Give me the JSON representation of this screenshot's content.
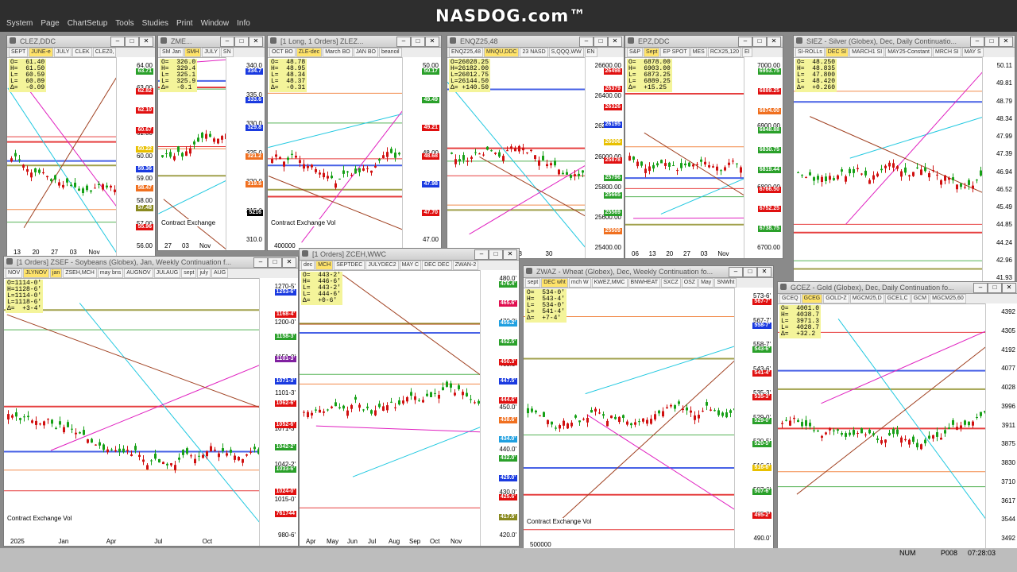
{
  "brand": "NASDOG.com™",
  "menu": [
    "System",
    "Page",
    "ChartSetup",
    "Tools",
    "Studies",
    "Print",
    "Window",
    "Info"
  ],
  "windows": [
    {
      "id": "w1",
      "title": "CLEZ,DDC",
      "tabs": [
        "SEPT",
        "JUNE-e",
        "JULY",
        "CLEK",
        "CLEZ0,"
      ],
      "ohlc": "O=  61.40\nH=  61.50\nL=  60.59\nL=  60.89\nΔ=  -0.09",
      "ticks": [
        "64.00",
        "63.00",
        "62.00",
        "61.00",
        "60.00",
        "59.00",
        "58.00",
        "57.00",
        "56.00"
      ],
      "tags": [
        {
          "t": "63.71",
          "c": "#2aa02a"
        },
        {
          "t": "62.82",
          "c": "#e01010"
        },
        {
          "t": "62.10",
          "c": "#e01010"
        },
        {
          "t": "60.67",
          "c": "#e01010"
        },
        {
          "t": "60.22",
          "c": "#e8c000"
        },
        {
          "t": "59.36",
          "c": "#1a3ae0"
        },
        {
          "t": "58.47",
          "c": "#f07020"
        },
        {
          "t": "57.48",
          "c": "#8a8a20"
        },
        {
          "t": "55.96",
          "c": "#e01010"
        }
      ],
      "xl": [
        "13",
        "20",
        "27",
        "03",
        "Nov"
      ]
    },
    {
      "id": "w2",
      "title": "ZME...",
      "tabs": [
        "SM Jan",
        "SMH",
        "JULY",
        "SN"
      ],
      "ohlc": "O=  326.0\nH=  329.4\nL=  325.1\nL=  325.9\nΔ=  -0.1",
      "ticks": [
        "340.0",
        "335.0",
        "330.0",
        "325.0",
        "320.0",
        "315.0",
        "310.0"
      ],
      "tags": [
        {
          "t": "334.7",
          "c": "#1a3ae0"
        },
        {
          "t": "333.6",
          "c": "#1a3ae0"
        },
        {
          "t": "329.8",
          "c": "#1a3ae0"
        },
        {
          "t": "321.2",
          "c": "#f07020"
        },
        {
          "t": "319.5",
          "c": "#f07020"
        },
        {
          "t": "5216",
          "c": "#000"
        }
      ],
      "ce": "Contract Exchange",
      "xl": [
        "27",
        "03",
        "Nov"
      ]
    },
    {
      "id": "w3",
      "title": "[1 Long, 1 Orders] ZLEZ...",
      "tabs": [
        "OCT BO",
        "ZLE-dec",
        "March BO",
        "JAN BO",
        "beanoil"
      ],
      "ohlc": "O=  48.78\nH=  48.95\nL=  48.34\nL=  48.37\nΔ=  -0.31",
      "ticks": [
        "50.00",
        "48.00",
        "47.00"
      ],
      "tags": [
        {
          "t": "50.17",
          "c": "#2aa02a"
        },
        {
          "t": "49.49",
          "c": "#2aa02a"
        },
        {
          "t": "49.21",
          "c": "#e01010"
        },
        {
          "t": "48.68",
          "c": "#e01010"
        },
        {
          "t": "47.98",
          "c": "#1a3ae0"
        },
        {
          "t": "47.70",
          "c": "#e01010"
        }
      ],
      "ce": "Contract Exchange Vol",
      "xl": [
        "400000"
      ]
    },
    {
      "id": "w4",
      "title": "ENQZ25,48",
      "tabs": [
        "ENQZ25,48",
        "MNQU,DDC",
        "23 NASD",
        "S,QQQ,WW",
        "EN"
      ],
      "ohlc": "O=26028.25\nH=26182.00\nL=26012.75\nL=26144.50\nΔ= +140.50",
      "ticks": [
        "26600.00",
        "26400.00",
        "26200.00",
        "26000.00",
        "25800.00",
        "25600.00",
        "25400.00"
      ],
      "tags": [
        {
          "t": "26498",
          "c": "#e01010"
        },
        {
          "t": "26379",
          "c": "#e01010"
        },
        {
          "t": "26326",
          "c": "#e01010"
        },
        {
          "t": "26195",
          "c": "#1a3ae0"
        },
        {
          "t": "26006",
          "c": "#e8c000"
        },
        {
          "t": "25878",
          "c": "#e01010"
        },
        {
          "t": "25796",
          "c": "#2aa02a"
        },
        {
          "t": "25665",
          "c": "#2aa02a"
        },
        {
          "t": "25569",
          "c": "#2aa02a"
        },
        {
          "t": "25509",
          "c": "#f07020"
        }
      ],
      "xl": [
        "30",
        "31",
        "08",
        "30"
      ]
    },
    {
      "id": "w5",
      "title": "EPZ,DDC",
      "tabs": [
        "S&P",
        "Sept",
        "EP SPOT",
        "MES",
        "RCX25,120",
        "EI"
      ],
      "ohlc": "O=  6878.00\nH=  6903.00\nL=  6873.25\nL=  6889.25\nΔ=  +15.25",
      "ticks": [
        "7000.00",
        "6900.00",
        "6800.00",
        "6700.00"
      ],
      "tags": [
        {
          "t": "6953.75",
          "c": "#2aa02a"
        },
        {
          "t": "6889.25",
          "c": "#e01010"
        },
        {
          "t": "6874.00",
          "c": "#f07020"
        },
        {
          "t": "6848.88",
          "c": "#2aa02a"
        },
        {
          "t": "6830.75",
          "c": "#2aa02a"
        },
        {
          "t": "6819.44",
          "c": "#2aa02a"
        },
        {
          "t": "6766.50",
          "c": "#e01010"
        },
        {
          "t": "6752.25",
          "c": "#e01010"
        },
        {
          "t": "6738.75",
          "c": "#2aa02a"
        }
      ],
      "xl": [
        "06",
        "13",
        "20",
        "27",
        "03",
        "Nov"
      ]
    },
    {
      "id": "w6",
      "title": "SIEZ - Silver (Globex), Dec, Daily Continuatio...",
      "tabs": [
        "SI-ROLLs",
        "DEC SI",
        "MARCH1 SI",
        "MAY25-Constant",
        "MRCH SI",
        "MAY S"
      ],
      "ohlc": "O=  48.250\nH=  48.835\nL=  47.800\nL=  48.420\nΔ=  +0.260",
      "ticks": [
        "50.11",
        "49.81",
        "48.79",
        "48.34",
        "47.99",
        "47.39",
        "46.94",
        "46.52",
        "45.49",
        "44.85",
        "44.24",
        "42.96",
        "41.93"
      ],
      "xl": [
        "Oct",
        "Nov"
      ]
    },
    {
      "id": "w7",
      "title": "[1 Orders] ZSEF - Soybeans (Globex), Jan, Weekly Continuation f...",
      "tabs": [
        "NOV",
        "JLYNOV",
        "jan",
        "ZSEH,MCH",
        "may bns",
        "AUGNOV",
        "JULAUG",
        "sept",
        "july",
        "AUG"
      ],
      "ohlc": "O=1114-0'\nH=1128-6'\nL=1114-0'\nL=1118-6'\nΔ=  +3-4'",
      "ticks": [
        "1270-5'",
        "1200-0'",
        "1151-0'",
        "1101-3'",
        "1071-3'",
        "1042-2'",
        "1015-0'",
        "980-6'"
      ],
      "tags": [
        {
          "t": "1253-6'",
          "c": "#1a3ae0"
        },
        {
          "t": "1168-4'",
          "c": "#e01010"
        },
        {
          "t": "1158-3'",
          "c": "#2aa02a"
        },
        {
          "t": "1101-3'",
          "c": "#8020a0"
        },
        {
          "t": "1071-3'",
          "c": "#1a3ae0"
        },
        {
          "t": "1062-6'",
          "c": "#e01010"
        },
        {
          "t": "1052-6'",
          "c": "#e01010"
        },
        {
          "t": "1042-2'",
          "c": "#2aa02a"
        },
        {
          "t": "1033-6'",
          "c": "#2aa02a"
        },
        {
          "t": "1024-0'",
          "c": "#e01010"
        },
        {
          "t": "761744",
          "c": "#e01010"
        }
      ],
      "ce": "Contract Exchange Vol",
      "xl": [
        "2025",
        "Jan",
        "Apr",
        "Jul",
        "Oct"
      ]
    },
    {
      "id": "w8",
      "title": "[1 Orders] ZCEH,WWC",
      "tabs": [
        "dec",
        "MCH",
        "SEPTDEC",
        "JULYDEC2",
        "MAY C",
        "DEC DEC",
        "ZWAN-2"
      ],
      "ohlc": "O=  443-2'\nH=  446-6'\nL=  443-2'\nL=  444-6'\nΔ=  +0-6'",
      "ticks": [
        "480.0'",
        "470.0'",
        "460.0'",
        "450.0'",
        "440.0'",
        "430.0'",
        "420.0'"
      ],
      "tags": [
        {
          "t": "476.4'",
          "c": "#2aa02a"
        },
        {
          "t": "465.6'",
          "c": "#e01050"
        },
        {
          "t": "455.2'",
          "c": "#20a0e0"
        },
        {
          "t": "452.5'",
          "c": "#2aa02a"
        },
        {
          "t": "450.3'",
          "c": "#e01010"
        },
        {
          "t": "447.5'",
          "c": "#1a3ae0"
        },
        {
          "t": "444.6'",
          "c": "#e01010"
        },
        {
          "t": "438.6'",
          "c": "#f07020"
        },
        {
          "t": "434.0'",
          "c": "#20a0e0"
        },
        {
          "t": "432.0'",
          "c": "#2aa02a"
        },
        {
          "t": "429.0'",
          "c": "#1a3ae0"
        },
        {
          "t": "425.6'",
          "c": "#e01010"
        },
        {
          "t": "417.5'",
          "c": "#8a8a20"
        }
      ],
      "xl": [
        "Apr",
        "May",
        "Jun",
        "Jul",
        "Aug",
        "Sep",
        "Oct",
        "Nov"
      ]
    },
    {
      "id": "w9",
      "title": "ZWAZ - Wheat (Globex), Dec, Weekly Continuation fo...",
      "tabs": [
        "sept",
        "DEC wht",
        "mch W",
        "KWEZ,MMC",
        "BNWHEAT",
        "SXCZ",
        "OSZ",
        "May",
        "SNWht"
      ],
      "ohlc": "O=  534-0'\nH=  543-4'\nL=  534-0'\nL=  541-4'\nΔ=  +7-4'",
      "ticks": [
        "573-6'",
        "567-7'",
        "558-7'",
        "543-6'",
        "535-3'",
        "529-0'",
        "520-5'",
        "516-6'",
        "507-6'",
        "495-2'",
        "490.0'"
      ],
      "tags": [
        {
          "t": "567-7'",
          "c": "#e01010"
        },
        {
          "t": "558-7'",
          "c": "#1a3ae0"
        },
        {
          "t": "543-6'",
          "c": "#2aa02a"
        },
        {
          "t": "541-4'",
          "c": "#e01010"
        },
        {
          "t": "535-3'",
          "c": "#e01010"
        },
        {
          "t": "529-0'",
          "c": "#2aa02a"
        },
        {
          "t": "520-5'",
          "c": "#2aa02a"
        },
        {
          "t": "516-6'",
          "c": "#e8c000"
        },
        {
          "t": "507-6'",
          "c": "#2aa02a"
        },
        {
          "t": "495-2'",
          "c": "#e01010"
        }
      ],
      "ce": "Contract Exchange Vol",
      "xl": [
        "500000"
      ]
    },
    {
      "id": "w10",
      "title": "GCEZ - Gold (Globex), Dec, Daily Continuation fo...",
      "tabs": [
        "GCEQ",
        "GCEG",
        "GOLD-Z",
        "MGCM25,D",
        "GCE1,C",
        "GCM",
        "MGCM25,60"
      ],
      "ohlc": "O=  4001.0\nH=  4038.7\nL=  3971.3\nL=  4028.7\nΔ=  +32.2",
      "ticks": [
        "4392",
        "4305",
        "4192",
        "4077",
        "4028",
        "3996",
        "3911",
        "3875",
        "3830",
        "3710",
        "3617",
        "3544",
        "3492"
      ],
      "xl": []
    }
  ],
  "status": {
    "num": "NUM",
    "page": "P008",
    "time": "07:28:03"
  },
  "colors": {
    "up": "#16a016",
    "down": "#d01010",
    "bg": "#ffffff"
  }
}
